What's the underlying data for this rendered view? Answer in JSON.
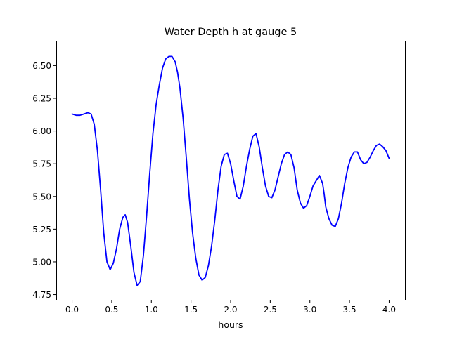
{
  "chart_data": {
    "type": "line",
    "title": "Water Depth h at gauge 5",
    "xlabel": "hours",
    "ylabel": "",
    "xlim": [
      -0.2,
      4.2
    ],
    "ylim": [
      4.71,
      6.69
    ],
    "xticks": [
      0.0,
      0.5,
      1.0,
      1.5,
      2.0,
      2.5,
      3.0,
      3.5,
      4.0
    ],
    "xtick_labels": [
      "0.0",
      "0.5",
      "1.0",
      "1.5",
      "2.0",
      "2.5",
      "3.0",
      "3.5",
      "4.0"
    ],
    "yticks": [
      4.75,
      5.0,
      5.25,
      5.5,
      5.75,
      6.0,
      6.25,
      6.5
    ],
    "ytick_labels": [
      "4.75",
      "5.00",
      "5.25",
      "5.50",
      "5.75",
      "6.00",
      "6.25",
      "6.50"
    ],
    "grid": false,
    "series": [
      {
        "color": "#0000ff",
        "x": [
          0.0,
          0.05,
          0.1,
          0.15,
          0.2,
          0.24,
          0.28,
          0.32,
          0.36,
          0.4,
          0.44,
          0.48,
          0.52,
          0.56,
          0.6,
          0.64,
          0.67,
          0.7,
          0.74,
          0.78,
          0.82,
          0.86,
          0.9,
          0.94,
          0.98,
          1.02,
          1.06,
          1.1,
          1.14,
          1.18,
          1.22,
          1.26,
          1.3,
          1.33,
          1.36,
          1.4,
          1.44,
          1.48,
          1.52,
          1.56,
          1.6,
          1.64,
          1.68,
          1.72,
          1.76,
          1.8,
          1.84,
          1.88,
          1.92,
          1.96,
          2.0,
          2.04,
          2.08,
          2.12,
          2.16,
          2.2,
          2.24,
          2.28,
          2.32,
          2.36,
          2.4,
          2.44,
          2.48,
          2.52,
          2.56,
          2.6,
          2.64,
          2.68,
          2.72,
          2.76,
          2.8,
          2.84,
          2.88,
          2.92,
          2.96,
          3.0,
          3.04,
          3.08,
          3.12,
          3.16,
          3.18,
          3.2,
          3.24,
          3.28,
          3.32,
          3.36,
          3.4,
          3.44,
          3.48,
          3.52,
          3.56,
          3.6,
          3.64,
          3.68,
          3.72,
          3.76,
          3.8,
          3.84,
          3.88,
          3.92,
          3.96,
          4.0
        ],
        "y": [
          6.13,
          6.12,
          6.12,
          6.13,
          6.14,
          6.13,
          6.05,
          5.85,
          5.55,
          5.22,
          5.0,
          4.94,
          4.99,
          5.1,
          5.25,
          5.34,
          5.36,
          5.3,
          5.12,
          4.92,
          4.82,
          4.85,
          5.05,
          5.35,
          5.68,
          5.98,
          6.2,
          6.35,
          6.48,
          6.55,
          6.57,
          6.57,
          6.53,
          6.45,
          6.33,
          6.1,
          5.8,
          5.48,
          5.22,
          5.03,
          4.9,
          4.86,
          4.88,
          4.97,
          5.12,
          5.32,
          5.55,
          5.73,
          5.82,
          5.83,
          5.75,
          5.62,
          5.5,
          5.48,
          5.58,
          5.73,
          5.86,
          5.96,
          5.98,
          5.88,
          5.72,
          5.58,
          5.5,
          5.49,
          5.55,
          5.65,
          5.75,
          5.82,
          5.84,
          5.82,
          5.72,
          5.55,
          5.45,
          5.41,
          5.43,
          5.5,
          5.58,
          5.62,
          5.66,
          5.6,
          5.52,
          5.42,
          5.33,
          5.28,
          5.27,
          5.33,
          5.45,
          5.6,
          5.72,
          5.8,
          5.84,
          5.84,
          5.78,
          5.75,
          5.76,
          5.8,
          5.85,
          5.89,
          5.9,
          5.88,
          5.85,
          5.79
        ]
      }
    ]
  }
}
